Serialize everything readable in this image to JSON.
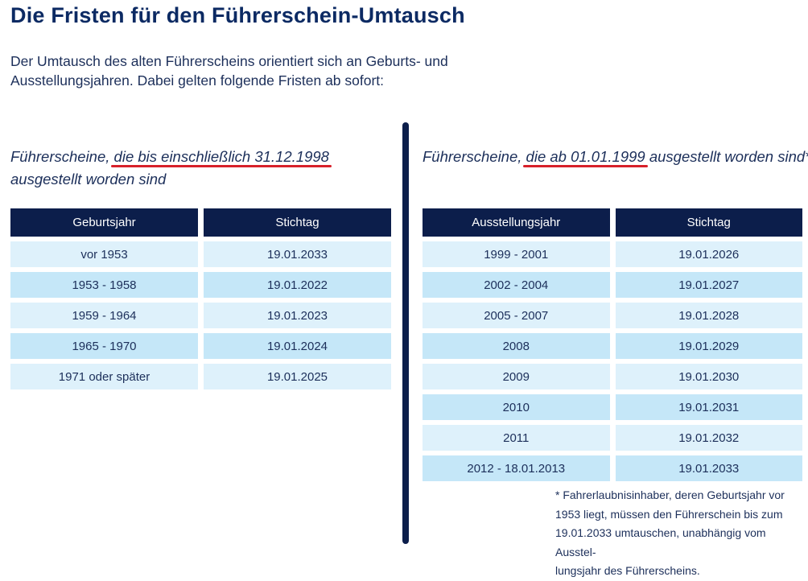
{
  "title": "Die Fristen für den Führerschein-Umtausch",
  "intro": {
    "line1": "Der Umtausch des alten Führerscheins orientiert sich an Geburts- und",
    "line2": "Ausstellungsjahren. Dabei gelten folgende Fristen ab sofort:"
  },
  "left": {
    "heading_prefix": "Führerscheine, ",
    "heading_highlight": "die bis einschließlich 31.12.1998",
    "heading_suffix": " ausgestellt worden sind",
    "columns": [
      "Geburtsjahr",
      "Stichtag"
    ],
    "rows": [
      [
        "vor 1953",
        "19.01.2033"
      ],
      [
        "1953 - 1958",
        "19.01.2022"
      ],
      [
        "1959 - 1964",
        "19.01.2023"
      ],
      [
        "1965 - 1970",
        "19.01.2024"
      ],
      [
        "1971 oder später",
        "19.01.2025"
      ]
    ]
  },
  "right": {
    "heading_prefix": "Führerscheine, ",
    "heading_highlight": "die ab 01.01.1999",
    "heading_suffix": " ausgestellt worden sind*",
    "columns": [
      "Ausstellungsjahr",
      "Stichtag"
    ],
    "rows": [
      [
        "1999 - 2001",
        "19.01.2026"
      ],
      [
        "2002 - 2004",
        "19.01.2027"
      ],
      [
        "2005 - 2007",
        "19.01.2028"
      ],
      [
        "2008",
        "19.01.2029"
      ],
      [
        "2009",
        "19.01.2030"
      ],
      [
        "2010",
        "19.01.2031"
      ],
      [
        "2011",
        "19.01.2032"
      ],
      [
        "2012 - 18.01.2013",
        "19.01.2033"
      ]
    ],
    "footnote_lines": [
      "* Fahrerlaubnisinhaber, deren Geburtsjahr vor",
      "1953 liegt, müssen den Führerschein bis zum",
      "19.01.2033 umtauschen, unabhängig vom Ausstel-",
      "lungsjahr des Führerscheins."
    ]
  },
  "colors": {
    "title": "#0c2a63",
    "header_bg": "#0c1e4b",
    "row_light": "#def1fb",
    "row_dark": "#c5e7f8",
    "underline": "#d7202a"
  }
}
